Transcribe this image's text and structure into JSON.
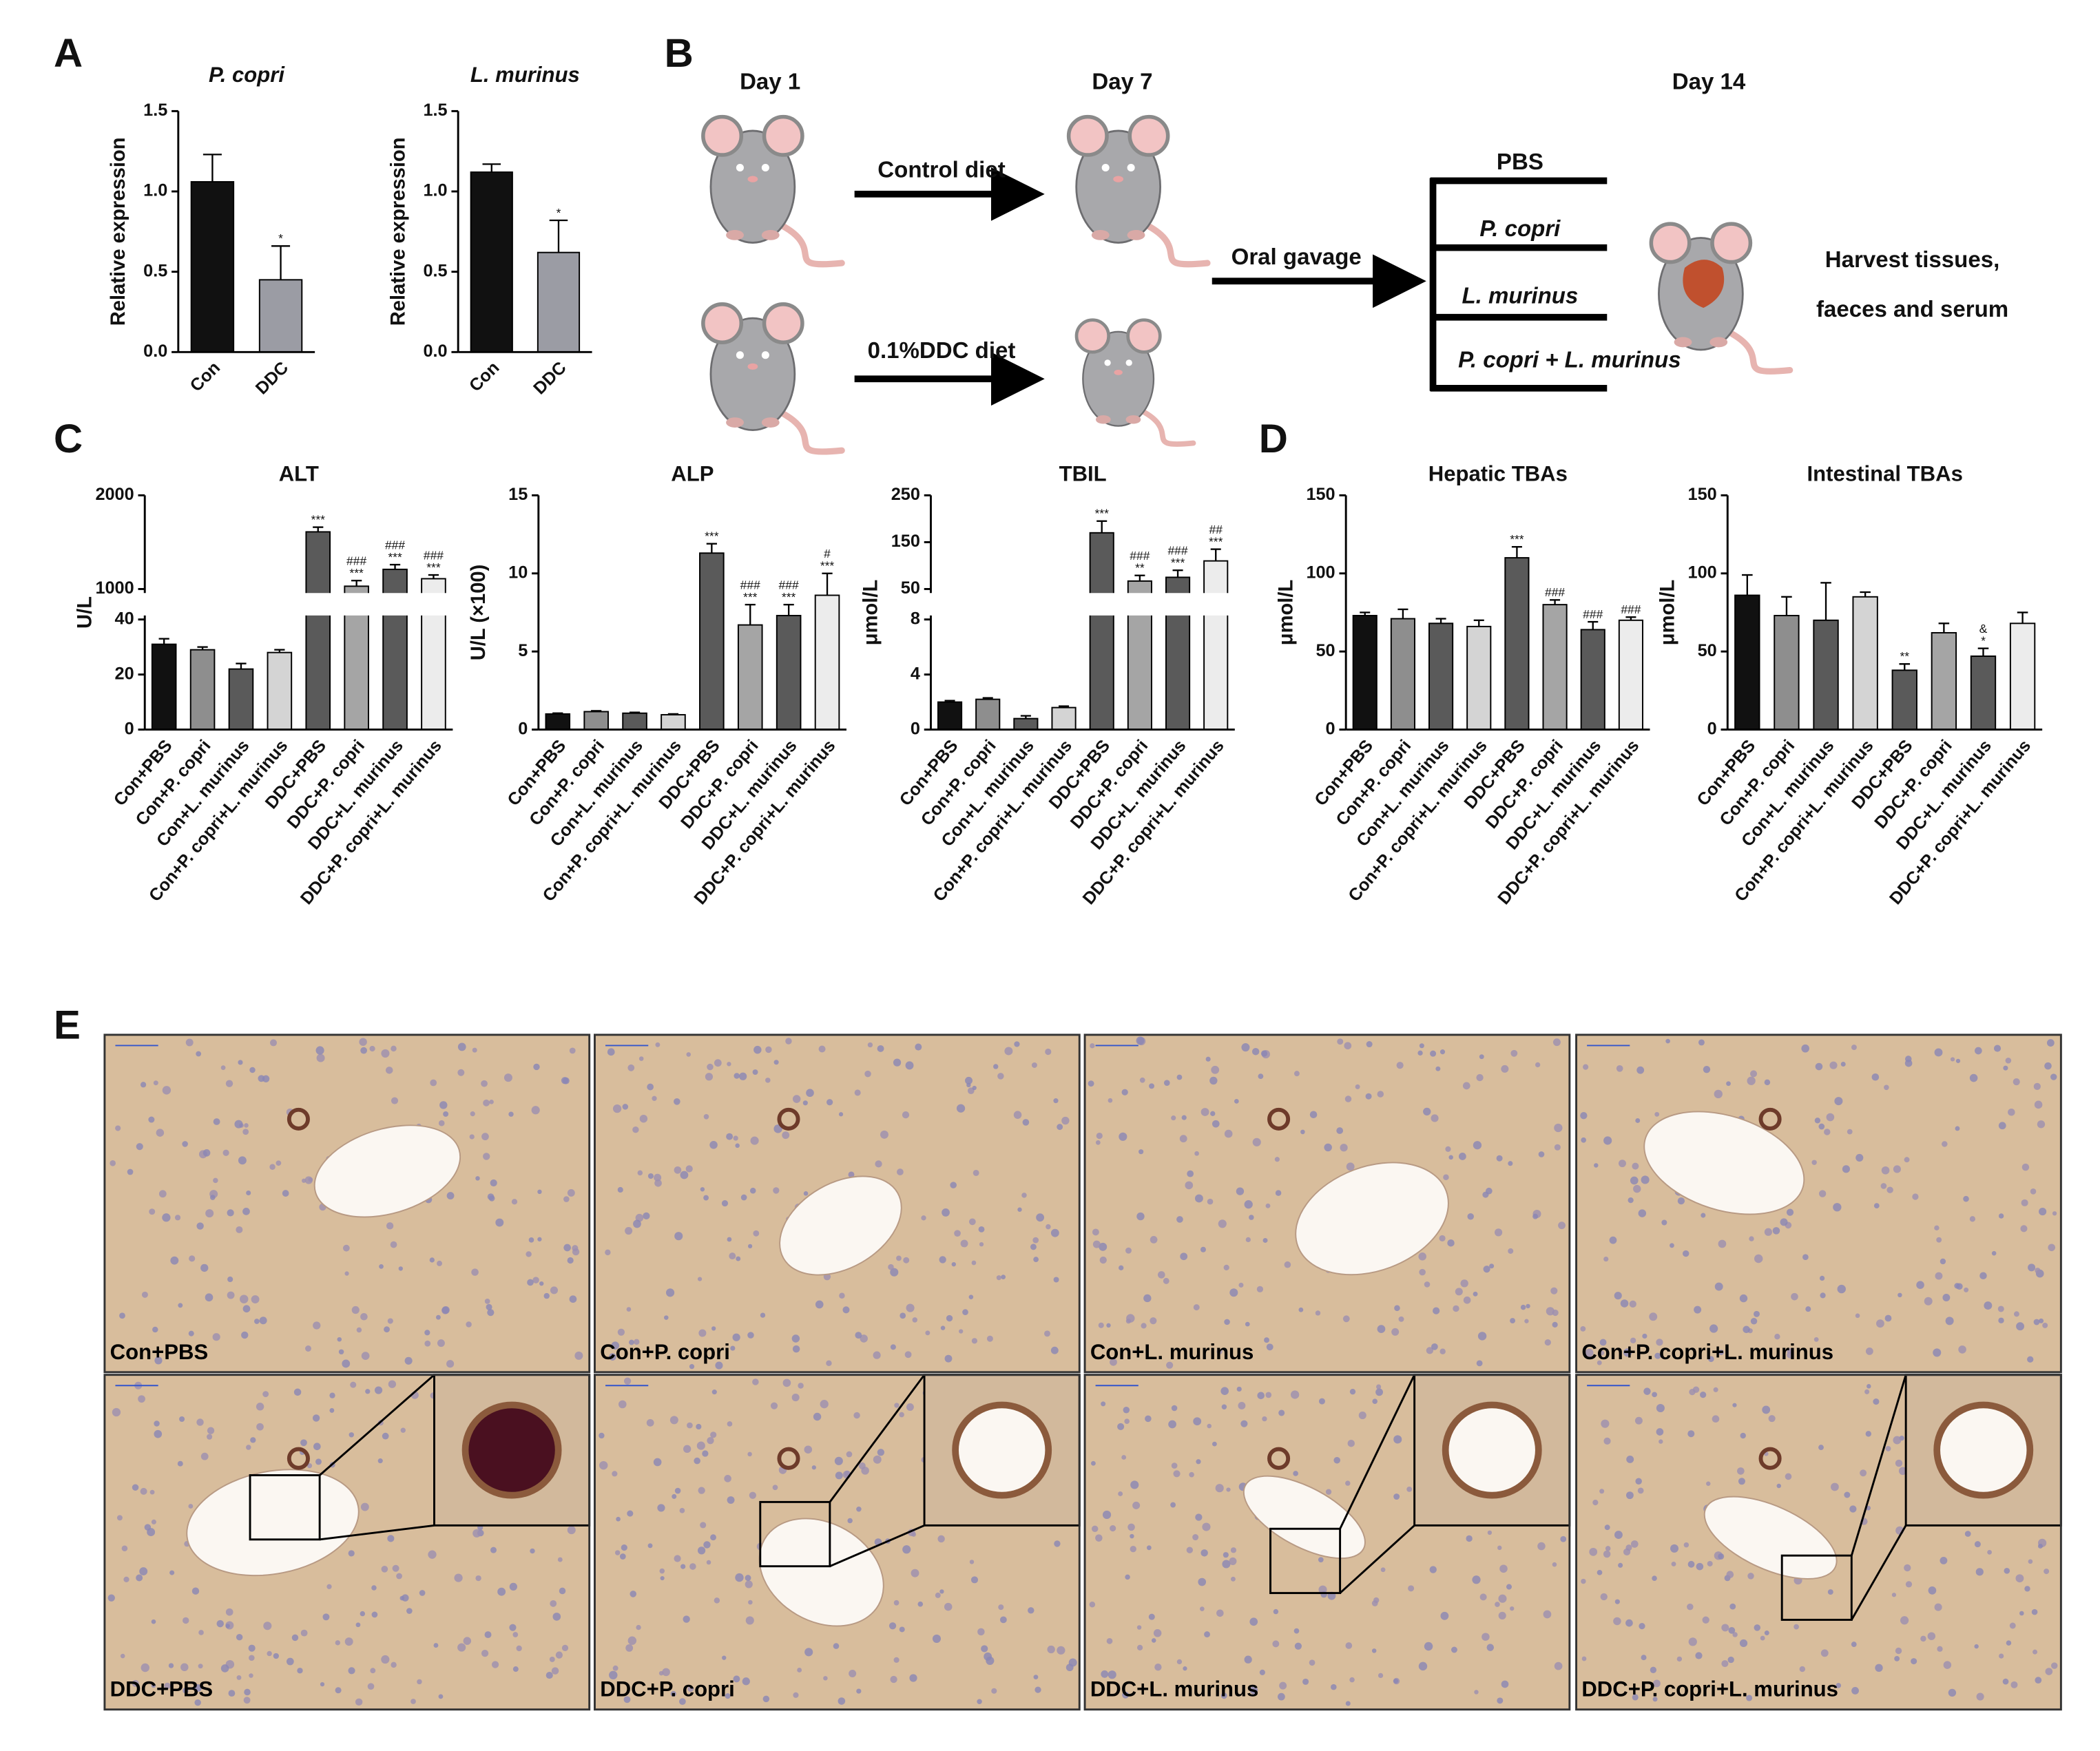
{
  "panel_labels": [
    "A",
    "B",
    "C",
    "D",
    "E"
  ],
  "chart_data": [
    {
      "type": "bar",
      "title": "P. copri",
      "title_style": "italic",
      "ylabel": "Relative expression",
      "categories": [
        "Con",
        "DDC"
      ],
      "values": [
        1.06,
        0.45
      ],
      "errors": [
        0.17,
        0.21
      ],
      "colors": [
        "#111111",
        "#9b9ca4"
      ],
      "sig_lower": [
        null,
        "*"
      ],
      "ylim": [
        0,
        1.5
      ],
      "yticks": [
        {
          "value": 0,
          "label": "0.0"
        },
        {
          "value": 0.5,
          "label": "0.5"
        },
        {
          "value": 1,
          "label": "1.0"
        },
        {
          "value": 1.5,
          "label": "1.5"
        }
      ]
    },
    {
      "type": "bar",
      "title": "L. murinus",
      "title_style": "italic",
      "ylabel": "Relative expression",
      "categories": [
        "Con",
        "DDC"
      ],
      "values": [
        1.12,
        0.62
      ],
      "errors": [
        0.05,
        0.2
      ],
      "colors": [
        "#111111",
        "#9b9ca4"
      ],
      "sig_lower": [
        null,
        "*"
      ],
      "ylim": [
        0,
        1.5
      ],
      "yticks": [
        {
          "value": 0,
          "label": "0.0"
        },
        {
          "value": 0.5,
          "label": "0.5"
        },
        {
          "value": 1,
          "label": "1.0"
        },
        {
          "value": 1.5,
          "label": "1.5"
        }
      ]
    },
    {
      "type": "bar",
      "title": "ALT",
      "ylabel": "U/L",
      "categories": [
        "Con+PBS",
        "Con+P. copri",
        "Con+L. murinus",
        "Con+P. copri+L. murinus",
        "DDC+PBS",
        "DDC+P. copri",
        "DDC+L. murinus",
        "DDC+P. copri+L. murinus"
      ],
      "values": [
        31,
        29,
        22,
        28,
        1610,
        1030,
        1210,
        1110
      ],
      "errors": [
        2,
        1,
        2,
        1,
        50,
        60,
        50,
        40
      ],
      "colors": [
        "#111111",
        "#8e8e8e",
        "#5a5a5a",
        "#d4d4d4",
        "#5a5a5a",
        "#a5a5a5",
        "#5a5a5a",
        "#ececec"
      ],
      "sig_lower": [
        null,
        null,
        null,
        null,
        "***",
        "***",
        "***",
        "***"
      ],
      "sig_upper": [
        null,
        null,
        null,
        null,
        null,
        "###",
        "###",
        "###"
      ],
      "ylim": [
        0,
        2000
      ],
      "ybreak": [
        40,
        1000
      ],
      "yticks": [
        0,
        20,
        40,
        1000,
        2000
      ]
    },
    {
      "type": "bar",
      "title": "ALP",
      "ylabel": "U/L (×100)",
      "categories": [
        "Con+PBS",
        "Con+P. copri",
        "Con+L. murinus",
        "Con+P. copri+L. murinus",
        "DDC+PBS",
        "DDC+P. copri",
        "DDC+L. murinus",
        "DDC+P. copri+L. murinus"
      ],
      "values": [
        1.0,
        1.15,
        1.05,
        0.95,
        11.3,
        6.7,
        7.3,
        8.6
      ],
      "errors": [
        0.05,
        0.05,
        0.05,
        0.05,
        0.6,
        1.3,
        0.7,
        1.4
      ],
      "colors": [
        "#111111",
        "#8e8e8e",
        "#5a5a5a",
        "#d4d4d4",
        "#5a5a5a",
        "#a5a5a5",
        "#5a5a5a",
        "#ececec"
      ],
      "sig_lower": [
        null,
        null,
        null,
        null,
        "***",
        "***",
        "***",
        "***"
      ],
      "sig_upper": [
        null,
        null,
        null,
        null,
        null,
        "###",
        "###",
        "#"
      ],
      "ylim": [
        0,
        15
      ],
      "yticks": [
        0,
        5,
        10,
        15
      ]
    },
    {
      "type": "bar",
      "title": "TBIL",
      "ylabel": "μmol/L",
      "categories": [
        "Con+PBS",
        "Con+P. copri",
        "Con+L. murinus",
        "Con+P. copri+L. murinus",
        "DDC+PBS",
        "DDC+P. copri",
        "DDC+L. murinus",
        "DDC+P. copri+L. murinus"
      ],
      "values": [
        2.0,
        2.2,
        0.8,
        1.6,
        170,
        67,
        75,
        110
      ],
      "errors": [
        0.1,
        0.1,
        0.2,
        0.1,
        25,
        12,
        15,
        25
      ],
      "colors": [
        "#111111",
        "#8e8e8e",
        "#5a5a5a",
        "#d4d4d4",
        "#5a5a5a",
        "#a5a5a5",
        "#5a5a5a",
        "#ececec"
      ],
      "sig_lower": [
        null,
        null,
        null,
        null,
        "***",
        "**",
        "***",
        "***"
      ],
      "sig_upper": [
        null,
        null,
        null,
        null,
        null,
        "###",
        "###",
        "##"
      ],
      "ylim": [
        0,
        250
      ],
      "ybreak": [
        8,
        50
      ],
      "yticks": [
        0,
        4,
        8,
        50,
        150,
        250
      ]
    },
    {
      "type": "bar",
      "title": "Hepatic TBAs",
      "ylabel": "μmol/L",
      "categories": [
        "Con+PBS",
        "Con+P. copri",
        "Con+L. murinus",
        "Con+P. copri+L. murinus",
        "DDC+PBS",
        "DDC+P. copri",
        "DDC+L. murinus",
        "DDC+P. copri+L. murinus"
      ],
      "values": [
        73,
        71,
        68,
        66,
        110,
        80,
        64,
        70
      ],
      "errors": [
        2,
        6,
        3,
        4,
        7,
        3,
        5,
        2
      ],
      "colors": [
        "#111111",
        "#8e8e8e",
        "#5a5a5a",
        "#d4d4d4",
        "#5a5a5a",
        "#a5a5a5",
        "#5a5a5a",
        "#ececec"
      ],
      "sig_lower": [
        null,
        null,
        null,
        null,
        "***",
        "###",
        "###",
        "###"
      ],
      "ylim": [
        0,
        150
      ],
      "yticks": [
        0,
        50,
        100,
        150
      ]
    },
    {
      "type": "bar",
      "title": "Intestinal TBAs",
      "ylabel": "μmol/L",
      "categories": [
        "Con+PBS",
        "Con+P. copri",
        "Con+L. murinus",
        "Con+P. copri+L. murinus",
        "DDC+PBS",
        "DDC+P. copri",
        "DDC+L. murinus",
        "DDC+P. copri+L. murinus"
      ],
      "values": [
        86,
        73,
        70,
        85,
        38,
        62,
        47,
        68
      ],
      "errors": [
        13,
        12,
        24,
        3,
        4,
        6,
        5,
        7
      ],
      "colors": [
        "#111111",
        "#8e8e8e",
        "#5a5a5a",
        "#d4d4d4",
        "#5a5a5a",
        "#a5a5a5",
        "#5a5a5a",
        "#ececec"
      ],
      "sig_lower": [
        null,
        null,
        null,
        null,
        "**",
        null,
        "*",
        null
      ],
      "sig_upper": [
        null,
        null,
        null,
        null,
        null,
        null,
        "&",
        null
      ],
      "ylim": [
        0,
        150
      ],
      "yticks": [
        0,
        50,
        100,
        150
      ]
    }
  ],
  "diagram": {
    "days": [
      "Day 1",
      "Day 7",
      "Day 14"
    ],
    "diets": [
      "Control diet",
      "0.1%DDC diet"
    ],
    "gavage": "Oral gavage",
    "groups": [
      "PBS",
      "P. copri",
      "L. murinus",
      "P. copri + L. murinus"
    ],
    "outcome": [
      "Harvest tissues,",
      "faeces and serum"
    ]
  },
  "images": {
    "labels": [
      "Con+PBS",
      "Con+P. copri",
      "Con+L. murinus",
      "Con+P. copri+L. murinus",
      "DDC+PBS",
      "DDC+P. copri",
      "DDC+L. murinus",
      "DDC+P. copri+L. murinus"
    ]
  }
}
